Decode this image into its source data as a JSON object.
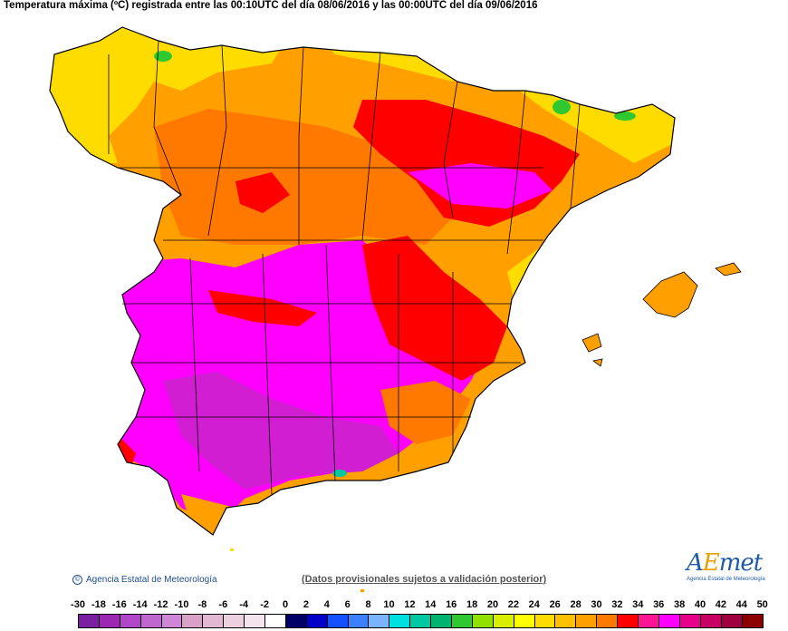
{
  "title": "Temperatura máxima (ºC) registrada entre las 00:10UTC del día 08/06/2016 y las 00:00UTC del día 09/06/2016",
  "credit": "Agencia Estatal de Meteorología",
  "disclaimer": "(Datos provisionales sujetos a validación posterior)",
  "logo": {
    "text_a": "A",
    "text_e": "E",
    "text_rest": "met",
    "sub": "Agencia Estatal de Meteorología"
  },
  "legend": {
    "labels": [
      "-30",
      "-18",
      "-16",
      "-14",
      "-12",
      "-10",
      "-8",
      "-6",
      "-4",
      "-2",
      "0",
      "2",
      "4",
      "6",
      "8",
      "10",
      "12",
      "14",
      "16",
      "18",
      "20",
      "22",
      "24",
      "26",
      "28",
      "30",
      "32",
      "34",
      "36",
      "38",
      "40",
      "42",
      "44",
      "50"
    ],
    "colors": [
      "#7b1fa2",
      "#9c27b0",
      "#b047c8",
      "#c066cf",
      "#cf86d6",
      "#d9a0c8",
      "#e2b8d2",
      "#ecd0e0",
      "#f4e4ee",
      "#ffffff",
      "#000066",
      "#0000c8",
      "#1450ff",
      "#3c80ff",
      "#78b4ff",
      "#00e0e0",
      "#00c8a0",
      "#00b470",
      "#30c830",
      "#90e000",
      "#d8f000",
      "#ffff00",
      "#ffdc00",
      "#ffc000",
      "#ffa000",
      "#ff7800",
      "#ff0000",
      "#ff1493",
      "#ff00ff",
      "#e6008c",
      "#c80064",
      "#a00040",
      "#8c0000"
    ]
  },
  "map": {
    "colors": {
      "yellow": "#ffdc00",
      "orange": "#ffa000",
      "dark_orange": "#ff7800",
      "red": "#ff0000",
      "magenta": "#ff00ff",
      "purple": "#d21ed2",
      "green": "#30c830",
      "cyan": "#00c8a0",
      "border": "#000000"
    }
  }
}
